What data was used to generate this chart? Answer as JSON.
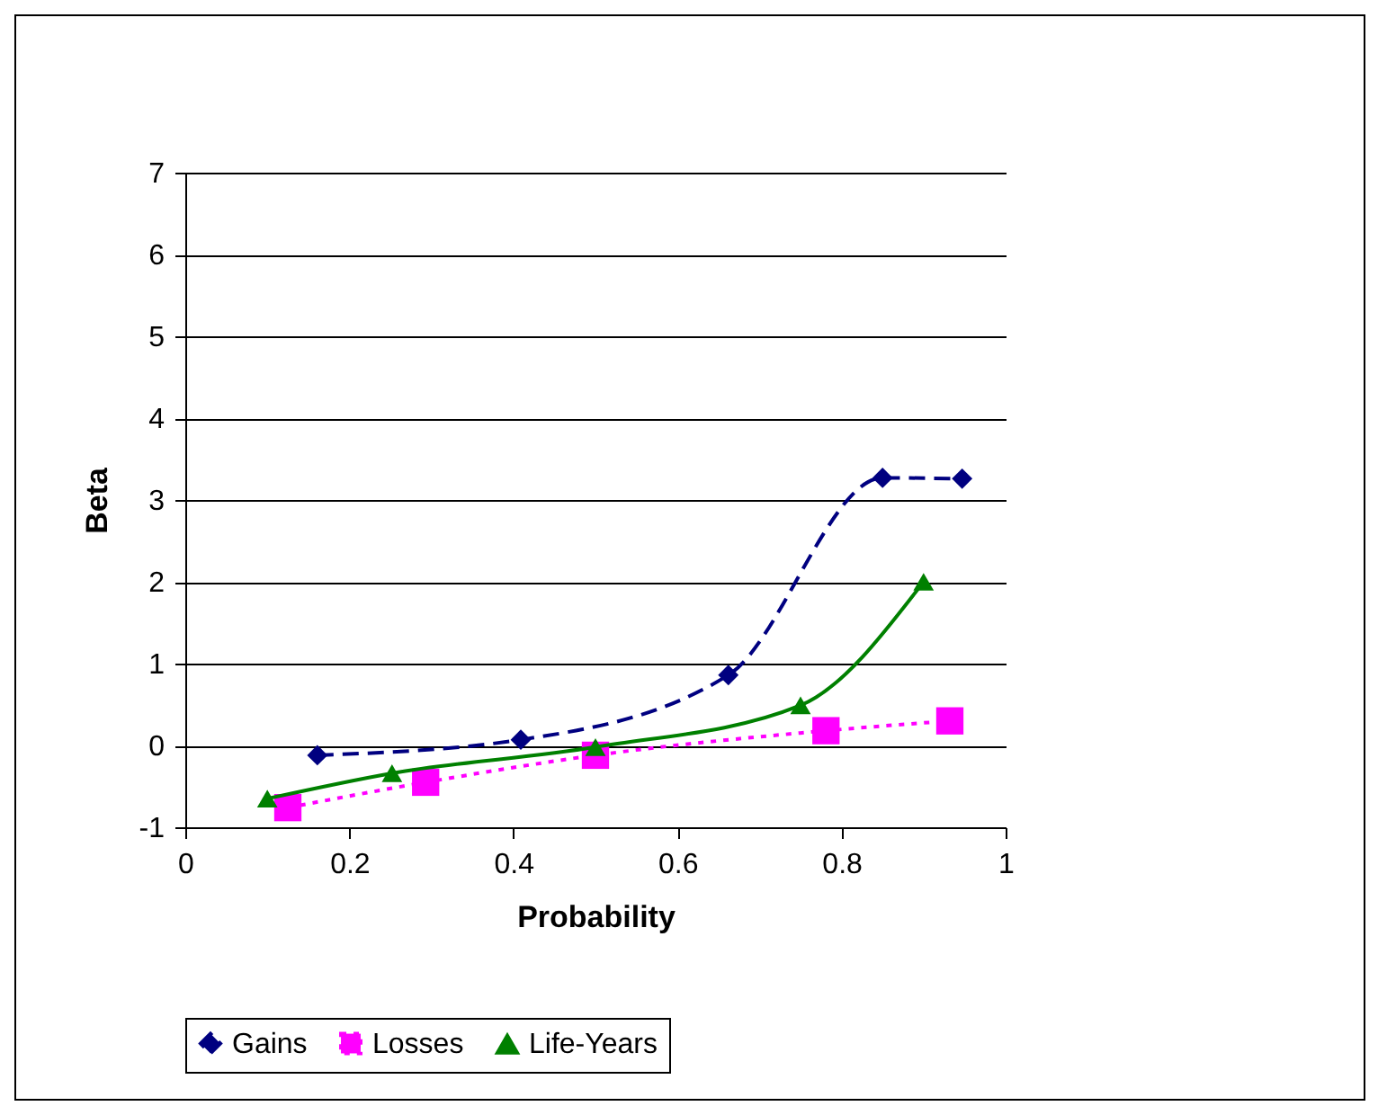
{
  "chart_data": {
    "type": "line",
    "xlabel": "Probability",
    "ylabel": "Beta",
    "xlim": [
      0,
      1
    ],
    "xticks": [
      0,
      0.2,
      0.4,
      0.6,
      0.8,
      1
    ],
    "ylim": [
      -1,
      7
    ],
    "yticks": [
      -1,
      0,
      1,
      2,
      3,
      4,
      5,
      6,
      7
    ],
    "grid": "y",
    "legend": "bottom",
    "series": [
      {
        "name": "Gains",
        "color": "#000080",
        "x": [
          0.161,
          0.409,
          0.662,
          0.85,
          0.947
        ],
        "values": [
          -0.12,
          0.07,
          0.86,
          3.27,
          3.26
        ],
        "marker": "diamond",
        "line_style": "dashed"
      },
      {
        "name": "Losses",
        "color": "#ff00ff",
        "x": [
          0.125,
          0.293,
          0.5,
          0.781,
          0.932
        ],
        "values": [
          -0.76,
          -0.45,
          -0.12,
          0.18,
          0.3
        ],
        "marker": "square",
        "line_style": "dotted"
      },
      {
        "name": "Life-Years",
        "color": "#008000",
        "x": [
          0.1,
          0.252,
          0.5,
          0.75,
          0.9
        ],
        "values": [
          -0.65,
          -0.34,
          -0.02,
          0.49,
          2.0
        ],
        "marker": "triangle",
        "line_style": "solid"
      }
    ]
  }
}
